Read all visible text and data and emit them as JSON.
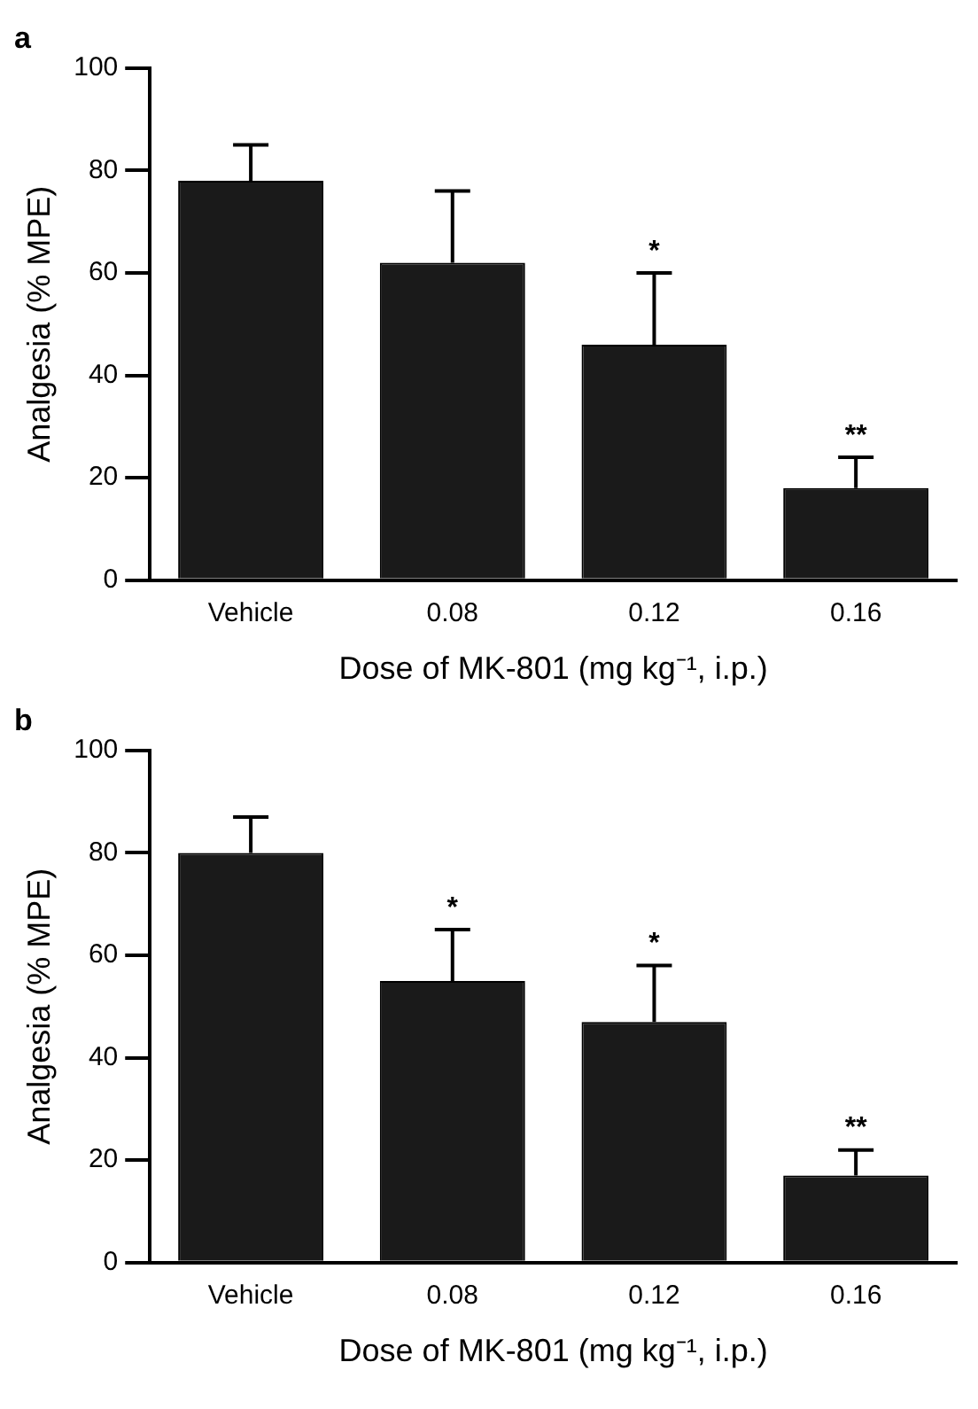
{
  "chart_data": [
    {
      "type": "bar",
      "title": "a",
      "xlabel": "Dose of MK-801 (mg kg⁻¹, i.p.)",
      "ylabel": "Analgesia (% MPE)",
      "categories": [
        "Vehicle",
        "0.08",
        "0.12",
        "0.16"
      ],
      "values": [
        78,
        62,
        46,
        18
      ],
      "errors": [
        [
          78,
          85
        ],
        [
          62,
          76
        ],
        [
          46,
          60
        ],
        [
          18,
          24
        ]
      ],
      "color": "#1a1a1a",
      "ylim": [
        0,
        100
      ],
      "yticks": [
        0,
        20,
        40,
        60,
        80,
        100
      ],
      "grid": false,
      "legend": false,
      "annotations": [
        {
          "text": "*",
          "x": "0.12",
          "y": 60
        },
        {
          "text": "**",
          "x": "0.16",
          "y": 24
        }
      ]
    },
    {
      "type": "bar",
      "title": "b",
      "xlabel": "Dose of MK-801 (mg kg⁻¹, i.p.)",
      "ylabel": "Analgesia (% MPE)",
      "categories": [
        "Vehicle",
        "0.08",
        "0.12",
        "0.16"
      ],
      "values": [
        80,
        55,
        47,
        17
      ],
      "errors": [
        [
          80,
          87
        ],
        [
          55,
          65
        ],
        [
          47,
          58
        ],
        [
          17,
          22
        ]
      ],
      "color": "#1a1a1a",
      "ylim": [
        0,
        100
      ],
      "yticks": [
        0,
        20,
        40,
        60,
        80,
        100
      ],
      "grid": false,
      "legend": false,
      "annotations": [
        {
          "text": "*",
          "x": "0.08",
          "y": 65
        },
        {
          "text": "*",
          "x": "0.12",
          "y": 58
        },
        {
          "text": "**",
          "x": "0.16",
          "y": 22
        }
      ]
    }
  ]
}
